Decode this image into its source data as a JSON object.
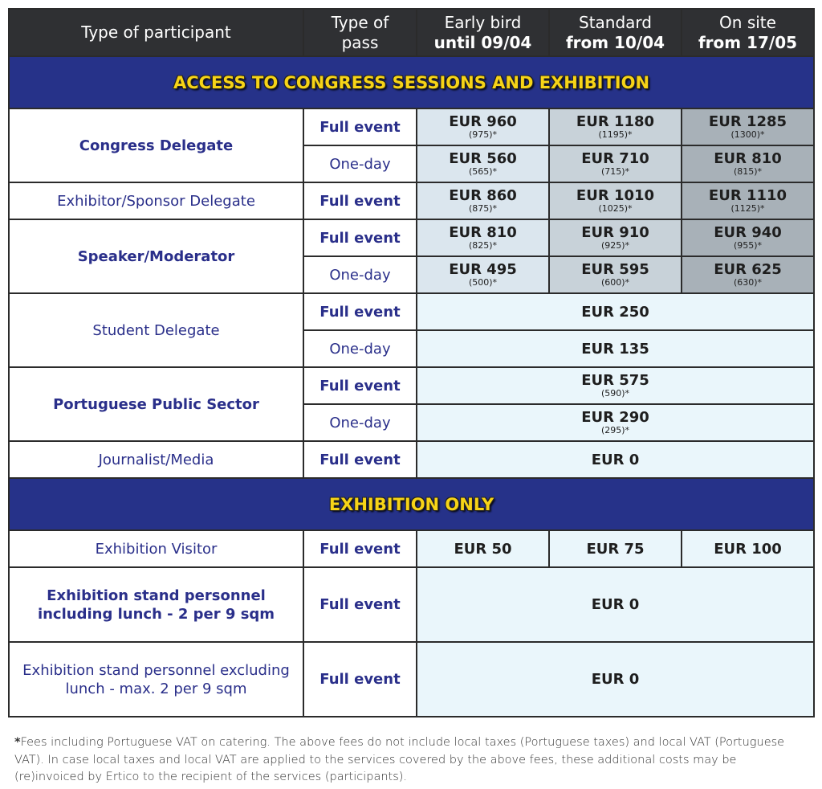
{
  "header": {
    "participant": "Type of participant",
    "pass": "Type of pass",
    "periods": [
      [
        "Early bird",
        "until 09/04"
      ],
      [
        "Standard",
        "from 10/04"
      ],
      [
        "On site",
        "from 17/05"
      ]
    ]
  },
  "sections": [
    {
      "title": "ACCESS TO CONGRESS SESSIONS AND EXHIBITION",
      "rows": [
        {
          "participant": "Congress Delegate",
          "bold": true,
          "passes": [
            {
              "pass": "Full event",
              "bold": true,
              "prices": [
                [
                  "EUR 960",
                  "(975)*"
                ],
                [
                  "EUR 1180",
                  "(1195)*"
                ],
                [
                  "EUR 1285",
                  "(1300)*"
                ]
              ]
            },
            {
              "pass": "One-day",
              "bold": false,
              "prices": [
                [
                  "EUR 560",
                  "(565)*"
                ],
                [
                  "EUR 710",
                  "(715)*"
                ],
                [
                  "EUR 810",
                  "(815)*"
                ]
              ]
            }
          ]
        },
        {
          "participant": "Exhibitor/Sponsor Delegate",
          "bold": false,
          "passes": [
            {
              "pass": "Full event",
              "bold": true,
              "prices": [
                [
                  "EUR 860",
                  "(875)*"
                ],
                [
                  "EUR 1010",
                  "(1025)*"
                ],
                [
                  "EUR 1110",
                  "(1125)*"
                ]
              ]
            }
          ]
        },
        {
          "participant": "Speaker/Moderator",
          "bold": true,
          "passes": [
            {
              "pass": "Full event",
              "bold": true,
              "prices": [
                [
                  "EUR 810",
                  "(825)*"
                ],
                [
                  "EUR 910",
                  "(925)*"
                ],
                [
                  "EUR 940",
                  "(955)*"
                ]
              ]
            },
            {
              "pass": "One-day",
              "bold": false,
              "prices": [
                [
                  "EUR 495",
                  "(500)*"
                ],
                [
                  "EUR 595",
                  "(600)*"
                ],
                [
                  "EUR 625",
                  "(630)*"
                ]
              ]
            }
          ]
        },
        {
          "participant": "Student Delegate",
          "bold": false,
          "passes": [
            {
              "pass": "Full event",
              "bold": true,
              "merged": [
                "EUR 250",
                ""
              ]
            },
            {
              "pass": "One-day",
              "bold": false,
              "merged": [
                "EUR 135",
                ""
              ]
            }
          ]
        },
        {
          "participant": "Portuguese Public Sector",
          "bold": true,
          "passes": [
            {
              "pass": "Full event",
              "bold": true,
              "merged": [
                "EUR 575",
                "(590)*"
              ]
            },
            {
              "pass": "One-day",
              "bold": false,
              "merged": [
                "EUR 290",
                "(295)*"
              ]
            }
          ]
        },
        {
          "participant": "Journalist/Media",
          "bold": false,
          "passes": [
            {
              "pass": "Full event",
              "bold": true,
              "merged": [
                "EUR 0",
                ""
              ]
            }
          ]
        }
      ]
    },
    {
      "title": "EXHIBITION ONLY",
      "rows": [
        {
          "participant": "Exhibition Visitor",
          "bold": false,
          "passes": [
            {
              "pass": "Full event",
              "bold": true,
              "plain": [
                "EUR 50",
                "EUR 75",
                "EUR 100"
              ]
            }
          ]
        },
        {
          "participant": "Exhibition stand personnel including lunch - 2 per 9 sqm",
          "bold": true,
          "tall": true,
          "passes": [
            {
              "pass": "Full event",
              "bold": true,
              "merged": [
                "EUR 0",
                ""
              ]
            }
          ]
        },
        {
          "participant": "Exhibition stand personnel excluding lunch - max. 2 per 9 sqm",
          "bold": false,
          "tall": true,
          "passes": [
            {
              "pass": "Full event",
              "bold": true,
              "merged": [
                "EUR 0",
                ""
              ]
            }
          ]
        }
      ]
    }
  ],
  "footnote": {
    "mark": "*",
    "text": "Fees including Portuguese VAT on catering. The above fees do not include local taxes (Portuguese taxes) and local VAT (Portuguese VAT). In case local taxes and local VAT are applied to the services covered by the above fees, these additional costs may be (re)invoiced by Ertico to the recipient of the services (participants)."
  }
}
